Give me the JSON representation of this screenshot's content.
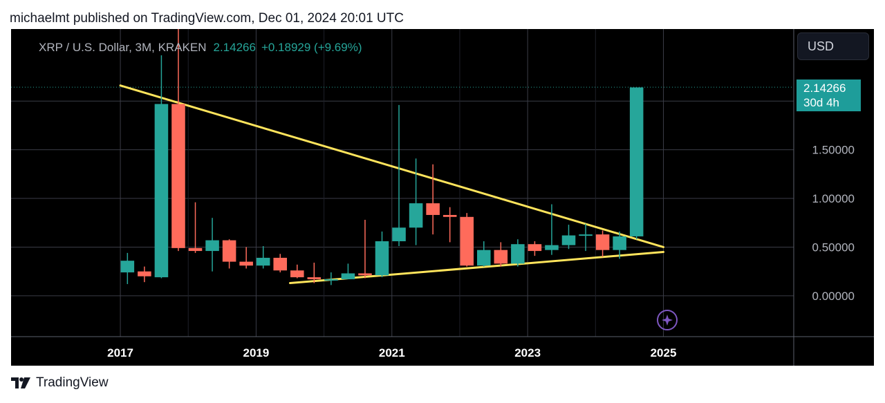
{
  "header": {
    "text": "michaelmt published on TradingView.com, Dec 01, 2024 20:01 UTC"
  },
  "legend": {
    "symbol": "XRP / U.S. Dollar, 3M, KRAKEN",
    "last_price": "2.14266",
    "change": "+0.18929 (+9.69%)"
  },
  "currency_button": {
    "label": "USD"
  },
  "price_tag": {
    "price": "2.14266",
    "countdown": "30d 4h"
  },
  "footer": {
    "brand": "TradingView"
  },
  "colors": {
    "up": "#26a69a",
    "down": "#ff6b5b",
    "trendline": "#ffe45c",
    "grid": "#3b3d47",
    "axis_text": "#b2b5be",
    "background": "#000000"
  },
  "icons": {
    "watermark": "sparkle-icon",
    "logo": "tradingview-logo-icon"
  },
  "chart_data": {
    "type": "candlestick",
    "symbol": "XRP / U.S. Dollar",
    "interval": "3M",
    "exchange": "KRAKEN",
    "y_ticks": [
      "0.00000",
      "0.50000",
      "1.00000",
      "1.50000"
    ],
    "x_ticks": [
      "2017",
      "2019",
      "2021",
      "2023",
      "2025"
    ],
    "ylim": [
      -0.42,
      2.74
    ],
    "xlim": [
      2015.39,
      2026.92
    ],
    "candles": [
      {
        "t": 2017.0,
        "o": 0.24,
        "h": 0.44,
        "l": 0.12,
        "c": 0.36
      },
      {
        "t": 2017.25,
        "o": 0.25,
        "h": 0.3,
        "l": 0.14,
        "c": 0.2
      },
      {
        "t": 2017.5,
        "o": 0.19,
        "h": 2.47,
        "l": 0.18,
        "c": 1.97
      },
      {
        "t": 2017.75,
        "o": 1.97,
        "h": 3.3,
        "l": 0.46,
        "c": 0.49
      },
      {
        "t": 2018.0,
        "o": 0.49,
        "h": 0.96,
        "l": 0.44,
        "c": 0.46
      },
      {
        "t": 2018.25,
        "o": 0.46,
        "h": 0.8,
        "l": 0.25,
        "c": 0.57
      },
      {
        "t": 2018.5,
        "o": 0.57,
        "h": 0.58,
        "l": 0.28,
        "c": 0.35
      },
      {
        "t": 2018.75,
        "o": 0.35,
        "h": 0.5,
        "l": 0.28,
        "c": 0.31
      },
      {
        "t": 2019.0,
        "o": 0.31,
        "h": 0.51,
        "l": 0.28,
        "c": 0.39
      },
      {
        "t": 2019.25,
        "o": 0.39,
        "h": 0.43,
        "l": 0.24,
        "c": 0.26
      },
      {
        "t": 2019.5,
        "o": 0.26,
        "h": 0.32,
        "l": 0.18,
        "c": 0.19
      },
      {
        "t": 2019.75,
        "o": 0.19,
        "h": 0.34,
        "l": 0.13,
        "c": 0.17
      },
      {
        "t": 2020.0,
        "o": 0.17,
        "h": 0.24,
        "l": 0.11,
        "c": 0.17
      },
      {
        "t": 2020.25,
        "o": 0.17,
        "h": 0.33,
        "l": 0.17,
        "c": 0.23
      },
      {
        "t": 2020.5,
        "o": 0.23,
        "h": 0.78,
        "l": 0.18,
        "c": 0.21
      },
      {
        "t": 2020.75,
        "o": 0.21,
        "h": 0.66,
        "l": 0.19,
        "c": 0.56
      },
      {
        "t": 2021.0,
        "o": 0.56,
        "h": 1.96,
        "l": 0.51,
        "c": 0.7
      },
      {
        "t": 2021.25,
        "o": 0.7,
        "h": 1.41,
        "l": 0.52,
        "c": 0.95
      },
      {
        "t": 2021.5,
        "o": 0.95,
        "h": 1.35,
        "l": 0.63,
        "c": 0.83
      },
      {
        "t": 2021.75,
        "o": 0.83,
        "h": 0.91,
        "l": 0.55,
        "c": 0.81
      },
      {
        "t": 2022.0,
        "o": 0.81,
        "h": 0.85,
        "l": 0.3,
        "c": 0.31
      },
      {
        "t": 2022.25,
        "o": 0.31,
        "h": 0.56,
        "l": 0.3,
        "c": 0.47
      },
      {
        "t": 2022.5,
        "o": 0.47,
        "h": 0.55,
        "l": 0.3,
        "c": 0.33
      },
      {
        "t": 2022.75,
        "o": 0.33,
        "h": 0.58,
        "l": 0.3,
        "c": 0.53
      },
      {
        "t": 2023.0,
        "o": 0.53,
        "h": 0.56,
        "l": 0.41,
        "c": 0.46
      },
      {
        "t": 2023.25,
        "o": 0.47,
        "h": 0.94,
        "l": 0.42,
        "c": 0.52
      },
      {
        "t": 2023.5,
        "o": 0.52,
        "h": 0.73,
        "l": 0.48,
        "c": 0.62
      },
      {
        "t": 2023.75,
        "o": 0.62,
        "h": 0.74,
        "l": 0.46,
        "c": 0.63
      },
      {
        "t": 2024.0,
        "o": 0.63,
        "h": 0.67,
        "l": 0.4,
        "c": 0.47
      },
      {
        "t": 2024.25,
        "o": 0.47,
        "h": 0.66,
        "l": 0.38,
        "c": 0.61
      },
      {
        "t": 2024.5,
        "o": 0.61,
        "h": 2.14,
        "l": 0.58,
        "c": 2.14
      }
    ],
    "trendlines": [
      {
        "name": "upper",
        "from": [
          2017.0,
          2.16
        ],
        "to": [
          2025.0,
          0.5
        ]
      },
      {
        "name": "lower",
        "from": [
          2019.5,
          0.13
        ],
        "to": [
          2025.0,
          0.45
        ]
      }
    ],
    "current_price": 2.14266,
    "grid": true
  }
}
